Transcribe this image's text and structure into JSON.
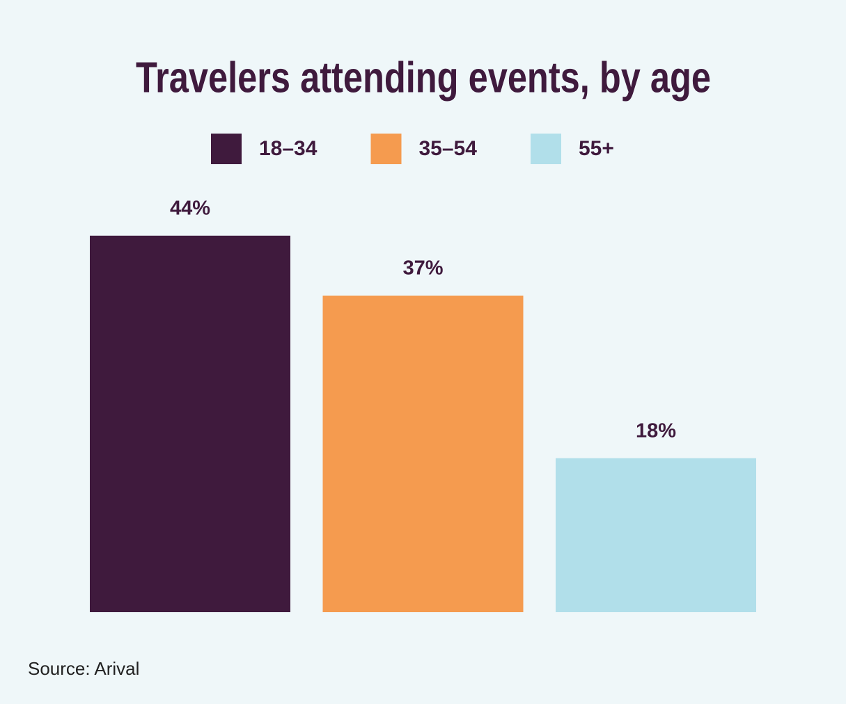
{
  "chart_data": {
    "type": "bar",
    "title": "Travelers attending events, by age",
    "categories": [
      null
    ],
    "series": [
      {
        "name": "18–34",
        "color": "#3f1a3d",
        "values": [
          44
        ],
        "value_labels": [
          "44%"
        ]
      },
      {
        "name": "35–54",
        "color": "#f59b4f",
        "values": [
          37
        ],
        "value_labels": [
          "37%"
        ]
      },
      {
        "name": "55+",
        "color": "#b1dfea",
        "values": [
          18
        ],
        "value_labels": [
          "18%"
        ]
      }
    ],
    "source": "Source: Arival"
  }
}
